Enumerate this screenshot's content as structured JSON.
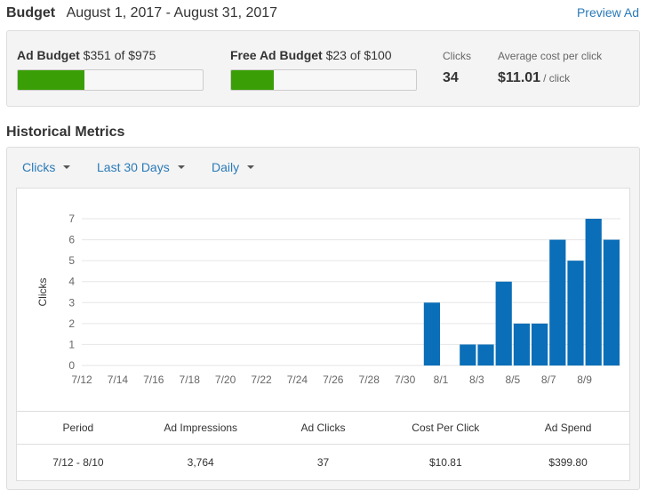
{
  "header": {
    "title": "Budget",
    "date_range": "August 1, 2017 - August 31, 2017",
    "preview_link": "Preview Ad"
  },
  "budget": {
    "ad_budget": {
      "label": "Ad Budget",
      "value": "$351 of $975",
      "fraction": 0.36
    },
    "free_ad_budget": {
      "label": "Free Ad Budget",
      "value": "$23 of $100",
      "fraction": 0.23
    },
    "clicks": {
      "label": "Clicks",
      "value": "34"
    },
    "avg_cpc": {
      "label": "Average cost per click",
      "value": "$11.01",
      "unit": "/ click"
    },
    "bar_color": "#3a9f06"
  },
  "metrics": {
    "title": "Historical Metrics",
    "dropdowns": {
      "metric": "Clicks",
      "range": "Last 30 Days",
      "interval": "Daily"
    },
    "summary": {
      "headers": [
        "Period",
        "Ad Impressions",
        "Ad Clicks",
        "Cost Per Click",
        "Ad Spend"
      ],
      "row": [
        "7/12 - 8/10",
        "3,764",
        "37",
        "$10.81",
        "$399.80"
      ]
    }
  },
  "chart_data": {
    "type": "bar",
    "ylabel": "Clicks",
    "ylim": [
      0,
      7
    ],
    "yticks": [
      0,
      1,
      2,
      3,
      4,
      5,
      6,
      7
    ],
    "grid": true,
    "bar_color": "#0a6eb8",
    "categories": [
      "7/12",
      "7/13",
      "7/14",
      "7/15",
      "7/16",
      "7/17",
      "7/18",
      "7/19",
      "7/20",
      "7/21",
      "7/22",
      "7/23",
      "7/24",
      "7/25",
      "7/26",
      "7/27",
      "7/28",
      "7/29",
      "7/30",
      "7/31",
      "8/1",
      "8/2",
      "8/3",
      "8/4",
      "8/5",
      "8/6",
      "8/7",
      "8/8",
      "8/9",
      "8/10"
    ],
    "tick_labels": [
      "7/12",
      "7/14",
      "7/16",
      "7/18",
      "7/20",
      "7/22",
      "7/24",
      "7/26",
      "7/28",
      "7/30",
      "8/1",
      "8/3",
      "8/5",
      "8/7",
      "8/9"
    ],
    "values": [
      0,
      0,
      0,
      0,
      0,
      0,
      0,
      0,
      0,
      0,
      0,
      0,
      0,
      0,
      0,
      0,
      0,
      0,
      0,
      3,
      0,
      1,
      1,
      4,
      2,
      2,
      6,
      5,
      7,
      6
    ]
  }
}
